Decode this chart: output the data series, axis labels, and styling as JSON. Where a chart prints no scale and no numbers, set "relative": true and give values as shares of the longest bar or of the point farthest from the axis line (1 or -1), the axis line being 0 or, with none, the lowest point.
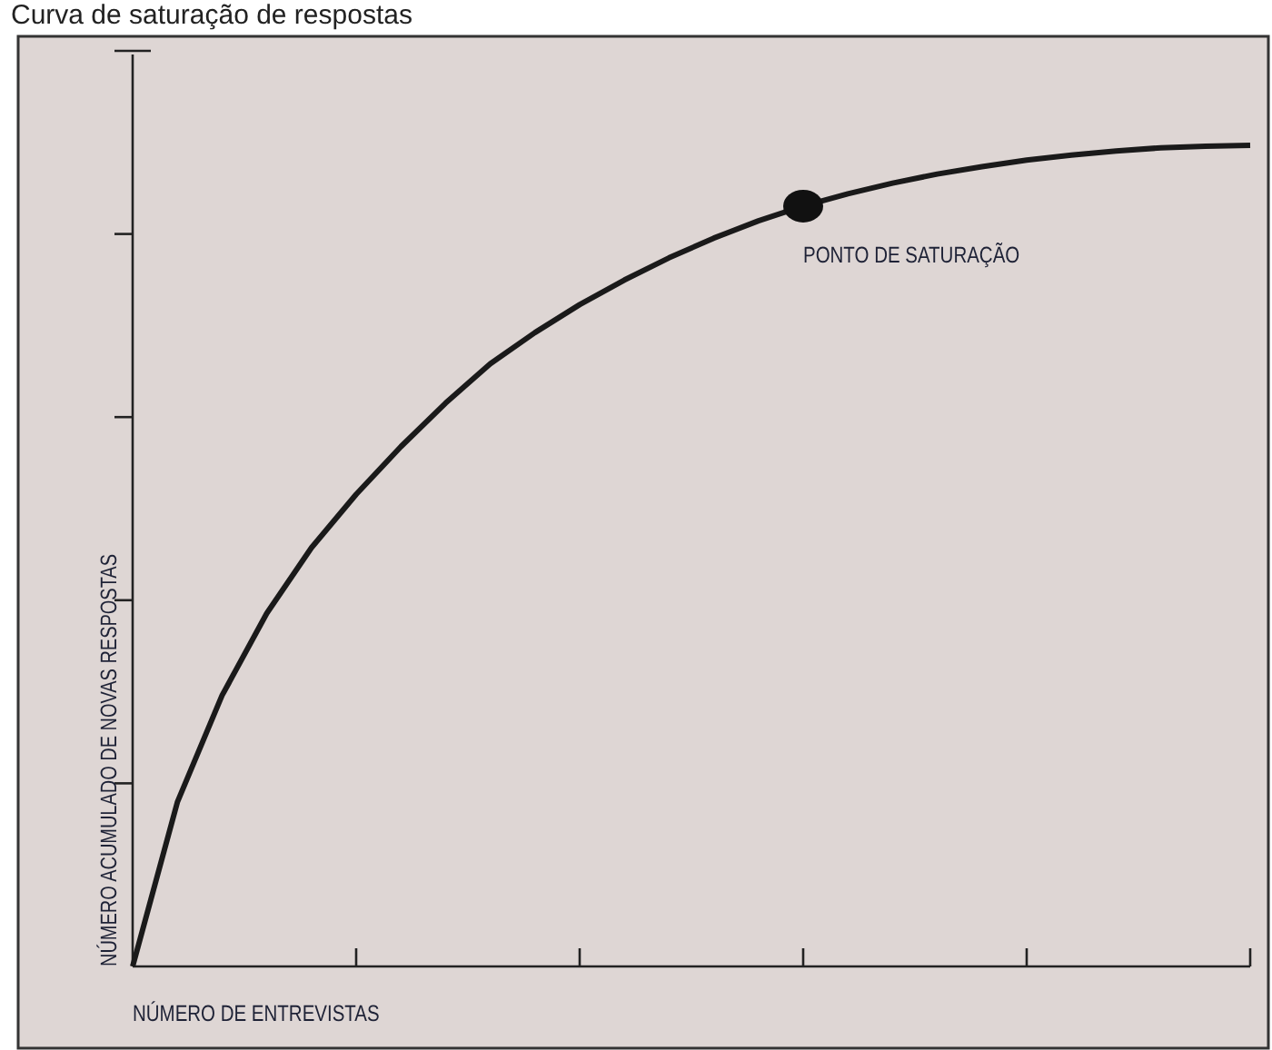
{
  "chart_data": {
    "type": "line",
    "title": "Curva de saturação de respostas",
    "xlabel": "NÚMERO DE ENTREVISTAS",
    "ylabel": "NÚMERO ACUMULADO DE NOVAS RESPOSTAS",
    "relative": true,
    "categories": [
      null,
      null,
      null,
      null,
      null,
      null,
      null,
      null,
      null,
      null,
      null,
      null,
      null,
      null,
      null,
      null,
      null,
      null,
      null,
      null,
      null,
      null,
      null,
      null,
      null,
      null
    ],
    "series": [
      {
        "color": "#1a1a1a",
        "values": [
          0,
          0.2,
          0.33,
          0.43,
          0.51,
          0.575,
          0.633,
          0.686,
          0.734,
          0.772,
          0.806,
          0.836,
          0.863,
          0.887,
          0.908,
          0.926,
          0.941,
          0.954,
          0.965,
          0.974,
          0.982,
          0.988,
          0.993,
          0.997,
          0.999,
          1
        ]
      }
    ],
    "annotations": [
      "PONTO DE SATURAÇÃO"
    ]
  }
}
